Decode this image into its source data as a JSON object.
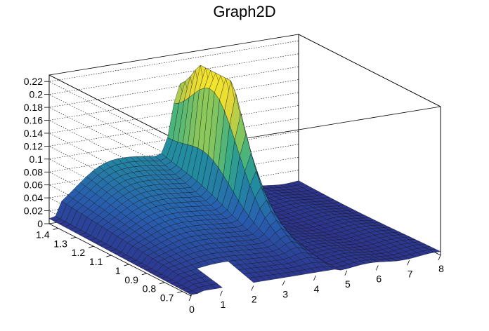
{
  "chart_data": {
    "type": "surface",
    "title": "Graph2D",
    "x_ticks": [
      "0",
      "1",
      "2",
      "3",
      "4",
      "5",
      "6",
      "7",
      "8"
    ],
    "y_ticks": [
      "0.7",
      "0.8",
      "0.9",
      "1",
      "1.1",
      "1.2",
      "1.3",
      "1.4"
    ],
    "z_ticks": [
      "0",
      "0.02",
      "0.04",
      "0.06",
      "0.08",
      "0.1",
      "0.12",
      "0.14",
      "0.16",
      "0.18",
      "0.2",
      "0.22"
    ],
    "xlim": [
      0,
      8
    ],
    "ylim": [
      0.65,
      1.45
    ],
    "zlim": [
      0,
      0.23
    ],
    "xlabel": "",
    "ylabel": "",
    "zlabel": "",
    "grid": true,
    "colormap": "viridis-like (blue → green → yellow)",
    "peak": {
      "x": 4.2,
      "y": 1.2,
      "z": 0.225
    },
    "hole_region": {
      "x": [
        1.0,
        2.0
      ],
      "y": [
        0.65,
        0.8
      ],
      "note": "empty (no data)"
    }
  }
}
